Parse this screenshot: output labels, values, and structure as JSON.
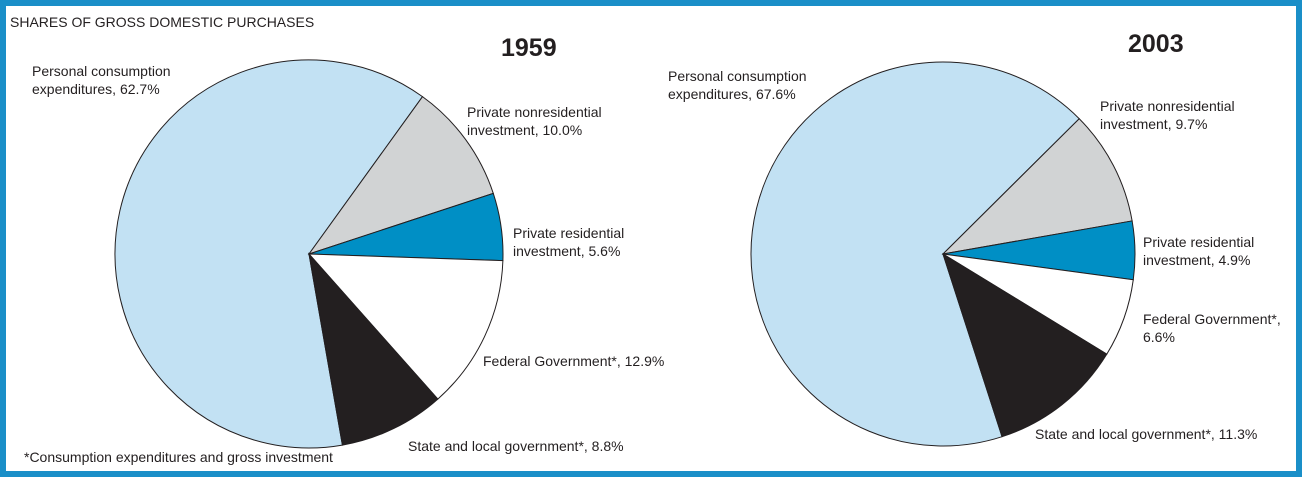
{
  "title": "SHARES OF GROSS DOMESTIC PURCHASES",
  "footnote": "*Consumption expenditures and gross investment",
  "chart_data": [
    {
      "type": "pie",
      "title": "1959",
      "values": [
        62.7,
        10.0,
        5.6,
        12.9,
        8.8
      ],
      "value_labels": [
        "Personal consumption expenditures, 62.7%",
        "Private nonresidential investment, 10.0%",
        "Private residential investment, 5.6%",
        "Federal Government*, 12.9%",
        "State and local government*, 8.8%"
      ],
      "colors": [
        "#c2e1f3",
        "#d1d3d4",
        "#008fc5",
        "#ffffff",
        "#231f20"
      ]
    },
    {
      "type": "pie",
      "title": "2003",
      "values": [
        67.6,
        9.7,
        4.9,
        6.6,
        11.3
      ],
      "value_labels": [
        "Personal consumption expenditures, 67.6%",
        "Private nonresidential investment, 9.7%",
        "Private residential investment, 4.9%",
        "Federal Government*, 6.6%",
        "State and local government*, 11.3%"
      ],
      "colors": [
        "#c2e1f3",
        "#d1d3d4",
        "#008fc5",
        "#ffffff",
        "#231f20"
      ]
    }
  ]
}
